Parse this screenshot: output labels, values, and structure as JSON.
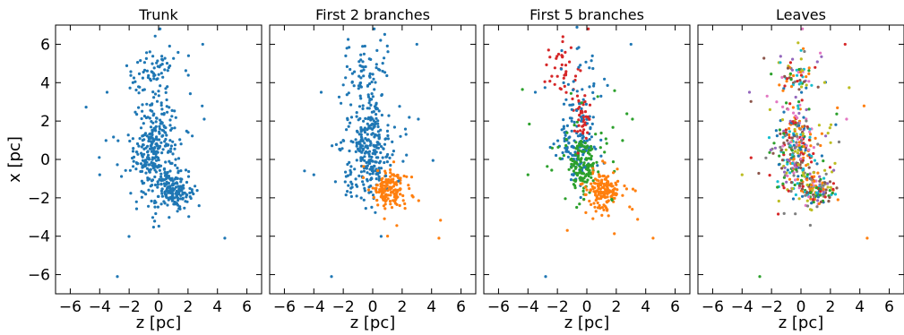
{
  "chart_data": {
    "type": "scatter",
    "xlabel": "z [pc]",
    "ylabel": "x [pc]",
    "xlim": [
      -7,
      7
    ],
    "ylim": [
      -7,
      7
    ],
    "xticks": [
      -6,
      -4,
      -2,
      0,
      2,
      4,
      6
    ],
    "yticks": [
      -6,
      -4,
      -2,
      0,
      2,
      4,
      6
    ],
    "grid": false,
    "colors": {
      "blue": "#1f77b4",
      "orange": "#ff7f0e",
      "green": "#2ca02c",
      "red": "#d62728",
      "purple": "#9467bd",
      "brown": "#8c564b",
      "pink": "#e377c2",
      "gray": "#7f7f7f",
      "olive": "#bcbd22",
      "cyan": "#17becf"
    },
    "panels": [
      {
        "title": "Trunk",
        "clusters": [
          {
            "color": "blue",
            "cx": -0.3,
            "cy": 0.5,
            "sx": 0.7,
            "sy": 1.3,
            "n": 260
          },
          {
            "color": "blue",
            "cx": 1.1,
            "cy": -1.6,
            "sx": 0.55,
            "sy": 0.45,
            "n": 140
          },
          {
            "color": "blue",
            "cx": -0.4,
            "cy": 4.5,
            "sx": 0.9,
            "sy": 0.8,
            "n": 70
          },
          {
            "color": "blue",
            "cx": 0.0,
            "cy": 0.2,
            "sx": 1.7,
            "sy": 1.9,
            "n": 70
          }
        ],
        "points": [
          {
            "color": "blue",
            "x": -2.8,
            "y": -6.1
          },
          {
            "color": "blue",
            "x": 4.5,
            "y": -4.1
          },
          {
            "color": "blue",
            "x": 3.0,
            "y": 6.0
          },
          {
            "color": "blue",
            "x": 0.1,
            "y": 6.8
          },
          {
            "color": "blue",
            "x": -4.0,
            "y": -0.8
          },
          {
            "color": "blue",
            "x": -3.5,
            "y": 3.5
          },
          {
            "color": "blue",
            "x": 3.1,
            "y": 2.1
          }
        ]
      },
      {
        "title": "First 2 branches",
        "clusters": [
          {
            "color": "blue",
            "cx": -0.3,
            "cy": 0.6,
            "sx": 0.7,
            "sy": 1.3,
            "n": 260
          },
          {
            "color": "orange",
            "cx": 1.1,
            "cy": -1.6,
            "sx": 0.55,
            "sy": 0.45,
            "n": 140
          },
          {
            "color": "blue",
            "cx": -0.4,
            "cy": 4.5,
            "sx": 0.9,
            "sy": 0.8,
            "n": 70
          },
          {
            "color": "blue",
            "cx": -0.4,
            "cy": 0.6,
            "sx": 1.5,
            "sy": 1.8,
            "n": 55
          },
          {
            "color": "orange",
            "cx": 1.3,
            "cy": -1.8,
            "sx": 1.2,
            "sy": 1.0,
            "n": 25
          }
        ],
        "points": [
          {
            "color": "blue",
            "x": -2.8,
            "y": -6.1
          },
          {
            "color": "orange",
            "x": 4.5,
            "y": -4.1
          },
          {
            "color": "blue",
            "x": 3.0,
            "y": 6.0
          },
          {
            "color": "blue",
            "x": 0.1,
            "y": 6.8
          },
          {
            "color": "blue",
            "x": -4.0,
            "y": -0.8
          },
          {
            "color": "blue",
            "x": -3.5,
            "y": 3.5
          },
          {
            "color": "blue",
            "x": 3.1,
            "y": 2.1
          }
        ]
      },
      {
        "title": "First 5 branches",
        "clusters": [
          {
            "color": "blue",
            "cx": -0.6,
            "cy": 0.6,
            "sx": 0.7,
            "sy": 0.8,
            "n": 130
          },
          {
            "color": "green",
            "cx": -0.2,
            "cy": -0.3,
            "sx": 0.45,
            "sy": 0.7,
            "n": 110
          },
          {
            "color": "red",
            "cx": -0.3,
            "cy": 2.2,
            "sx": 0.25,
            "sy": 0.7,
            "n": 45
          },
          {
            "color": "red",
            "cx": -1.6,
            "cy": 4.8,
            "sx": 0.6,
            "sy": 0.8,
            "n": 35
          },
          {
            "color": "orange",
            "cx": 1.1,
            "cy": -1.6,
            "sx": 0.55,
            "sy": 0.45,
            "n": 140
          },
          {
            "color": "blue",
            "cx": -0.5,
            "cy": 3.6,
            "sx": 0.8,
            "sy": 1.0,
            "n": 45
          },
          {
            "color": "green",
            "cx": -0.3,
            "cy": 0.4,
            "sx": 1.6,
            "sy": 1.6,
            "n": 45
          },
          {
            "color": "orange",
            "cx": 1.3,
            "cy": -1.8,
            "sx": 1.2,
            "sy": 1.0,
            "n": 25
          }
        ],
        "points": [
          {
            "color": "blue",
            "x": -2.8,
            "y": -6.1
          },
          {
            "color": "orange",
            "x": 4.5,
            "y": -4.1
          },
          {
            "color": "blue",
            "x": 3.0,
            "y": 6.0
          },
          {
            "color": "red",
            "x": 0.1,
            "y": 6.8
          },
          {
            "color": "green",
            "x": -4.0,
            "y": -0.8
          },
          {
            "color": "blue",
            "x": -3.5,
            "y": 3.5
          },
          {
            "color": "green",
            "x": 3.1,
            "y": 2.1
          },
          {
            "color": "red",
            "x": -2.6,
            "y": 5.7
          }
        ]
      },
      {
        "title": "Leaves",
        "clusters": [
          {
            "color": "mixed",
            "cx": -0.3,
            "cy": 0.5,
            "sx": 0.7,
            "sy": 1.3,
            "n": 260
          },
          {
            "color": "mixed",
            "cx": 1.1,
            "cy": -1.6,
            "sx": 0.55,
            "sy": 0.45,
            "n": 140
          },
          {
            "color": "mixed",
            "cx": -0.4,
            "cy": 4.5,
            "sx": 0.9,
            "sy": 0.8,
            "n": 70
          },
          {
            "color": "mixed",
            "cx": 0.0,
            "cy": 0.2,
            "sx": 1.7,
            "sy": 1.9,
            "n": 70
          }
        ],
        "points": [
          {
            "color": "green",
            "x": -2.8,
            "y": -6.1
          },
          {
            "color": "orange",
            "x": 4.5,
            "y": -4.1
          },
          {
            "color": "red",
            "x": 3.0,
            "y": 6.0
          },
          {
            "color": "pink",
            "x": 0.1,
            "y": 6.8
          },
          {
            "color": "olive",
            "x": -4.0,
            "y": -0.8
          },
          {
            "color": "purple",
            "x": -3.5,
            "y": 3.5
          },
          {
            "color": "pink",
            "x": 3.1,
            "y": 2.1
          }
        ]
      }
    ]
  }
}
